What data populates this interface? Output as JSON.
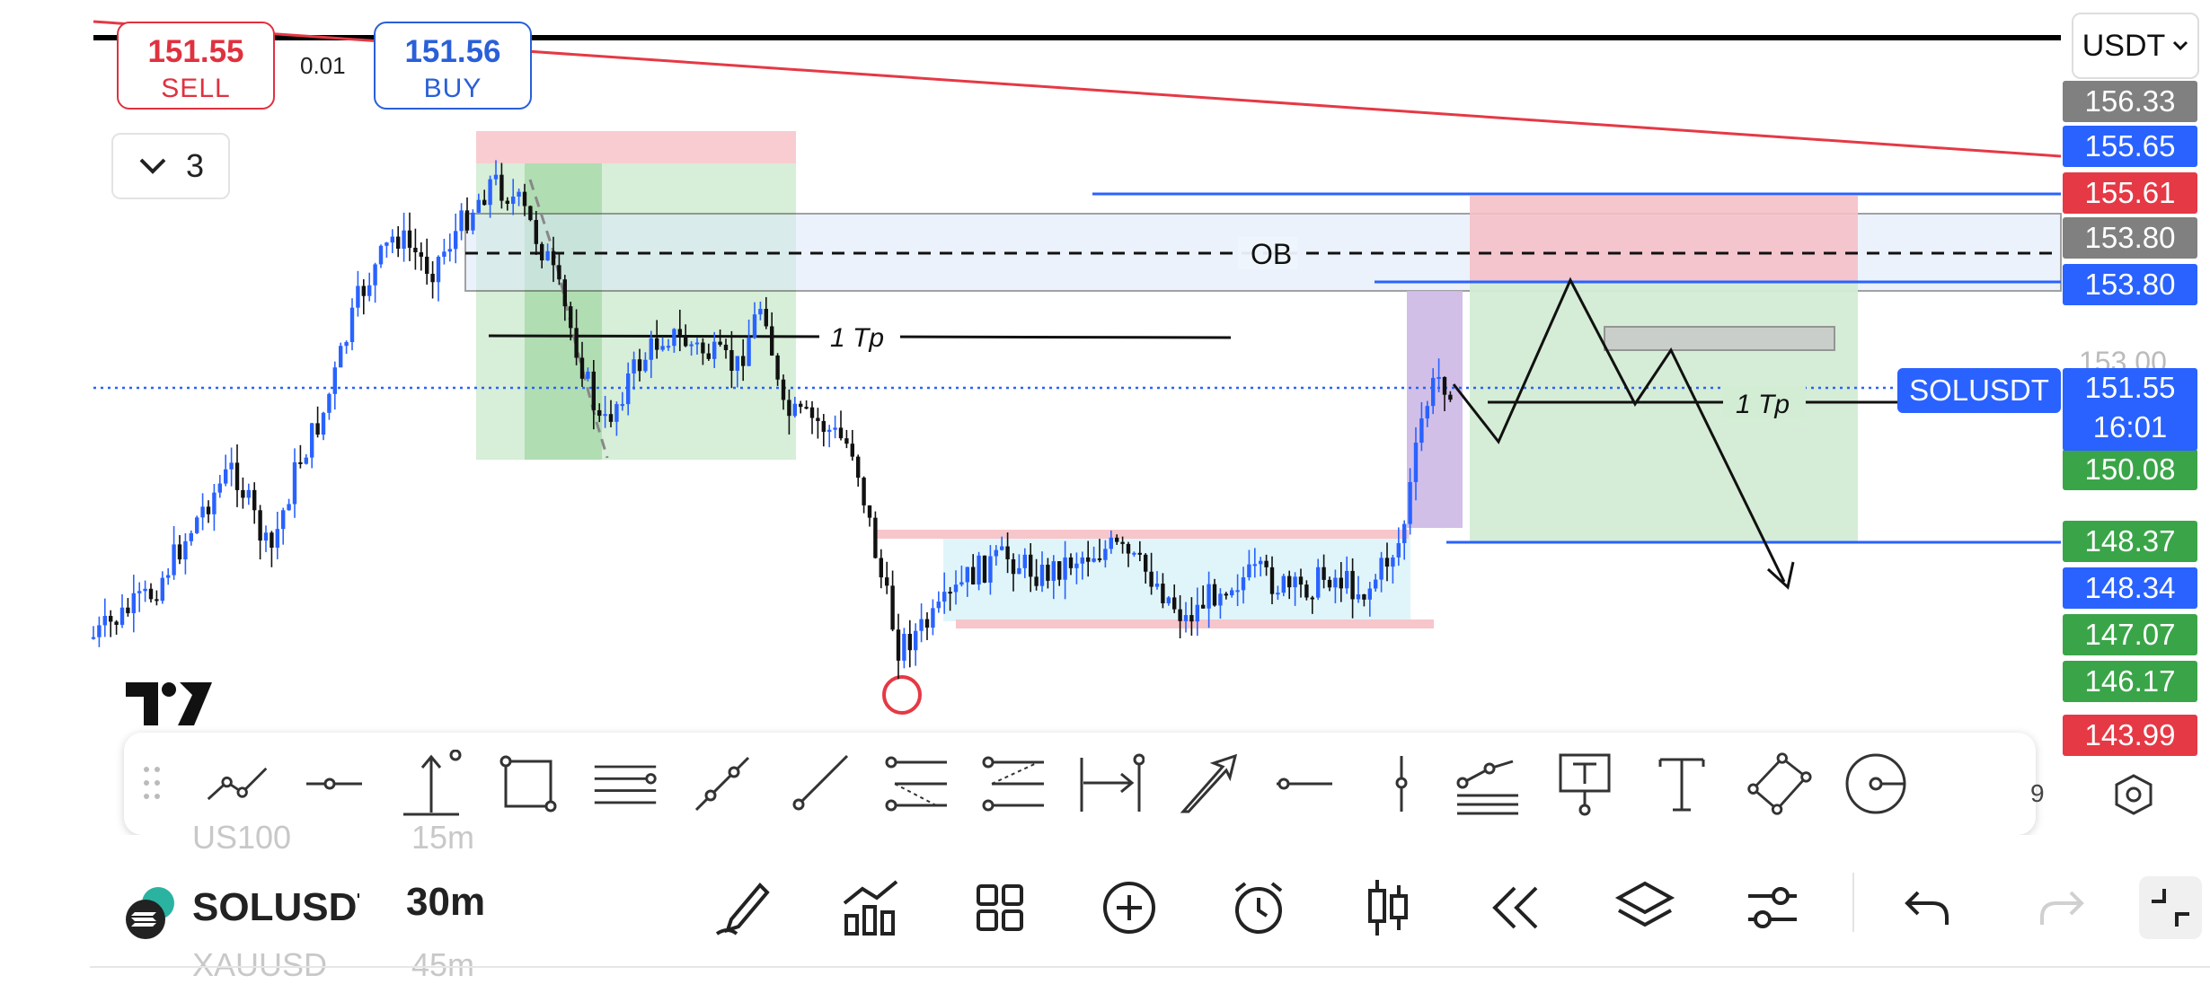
{
  "trade_panel": {
    "sell": {
      "price": "151.55",
      "label": "SELL"
    },
    "buy": {
      "price": "151.56",
      "label": "BUY"
    },
    "spread": "0.01"
  },
  "layers": {
    "count": "3"
  },
  "currency": {
    "selected": "USDT"
  },
  "chart": {
    "symbol_tag": "SOLUSDT",
    "current_price": "151.55",
    "countdown": "16:01",
    "ob_label": "OB",
    "tp_label": "1 Tp",
    "tp_label_2": "1 Tp",
    "partial_axis_label": "153.00"
  },
  "price_scale": [
    {
      "value": "156.33",
      "color": "#808080"
    },
    {
      "value": "155.65",
      "color": "#2962ff"
    },
    {
      "value": "155.61",
      "color": "#e53945"
    },
    {
      "value": "153.80",
      "color": "#808080"
    },
    {
      "value": "153.80",
      "color": "#2962ff"
    },
    {
      "value": "150.08",
      "color": "#3aa548"
    },
    {
      "value": "148.37",
      "color": "#3aa548"
    },
    {
      "value": "148.34",
      "color": "#2962ff"
    },
    {
      "value": "147.07",
      "color": "#3aa548"
    },
    {
      "value": "146.17",
      "color": "#3aa548"
    },
    {
      "value": "143.99",
      "color": "#e53945"
    }
  ],
  "drawing_toolbar": {
    "tools": [
      "trend-line-icon",
      "horizontal-ray-icon",
      "price-range-icon",
      "rectangle-icon",
      "parallel-channel-icon",
      "extended-line-icon",
      "ray-icon",
      "fib-retracement-icon",
      "fib-extension-icon",
      "date-range-icon",
      "arrow-icon",
      "horizontal-line-icon",
      "vertical-line-icon",
      "pitchfork-icon",
      "text-note-icon",
      "text-icon",
      "parallelogram-icon",
      "circle-icon"
    ],
    "count": "9"
  },
  "bottom_bar": {
    "symbol": "SOLUSDT",
    "symbol_prev": "US100",
    "symbol_next": "XAUUSD",
    "interval": "30m",
    "interval_prev": "15m",
    "interval_next": "45m",
    "icons": [
      "draw-icon",
      "indicators-icon",
      "layout-grid-icon",
      "add-icon",
      "alert-icon",
      "candles-icon",
      "replay-icon",
      "layers-icon",
      "settings-sliders-icon",
      "undo-icon",
      "redo-icon",
      "fullscreen-icon"
    ]
  },
  "colors": {
    "accent": "#2962ff",
    "sell": "#e0313f",
    "buy": "#2a5fd8",
    "up_candle": "#2962ff",
    "down_candle": "#111111"
  }
}
